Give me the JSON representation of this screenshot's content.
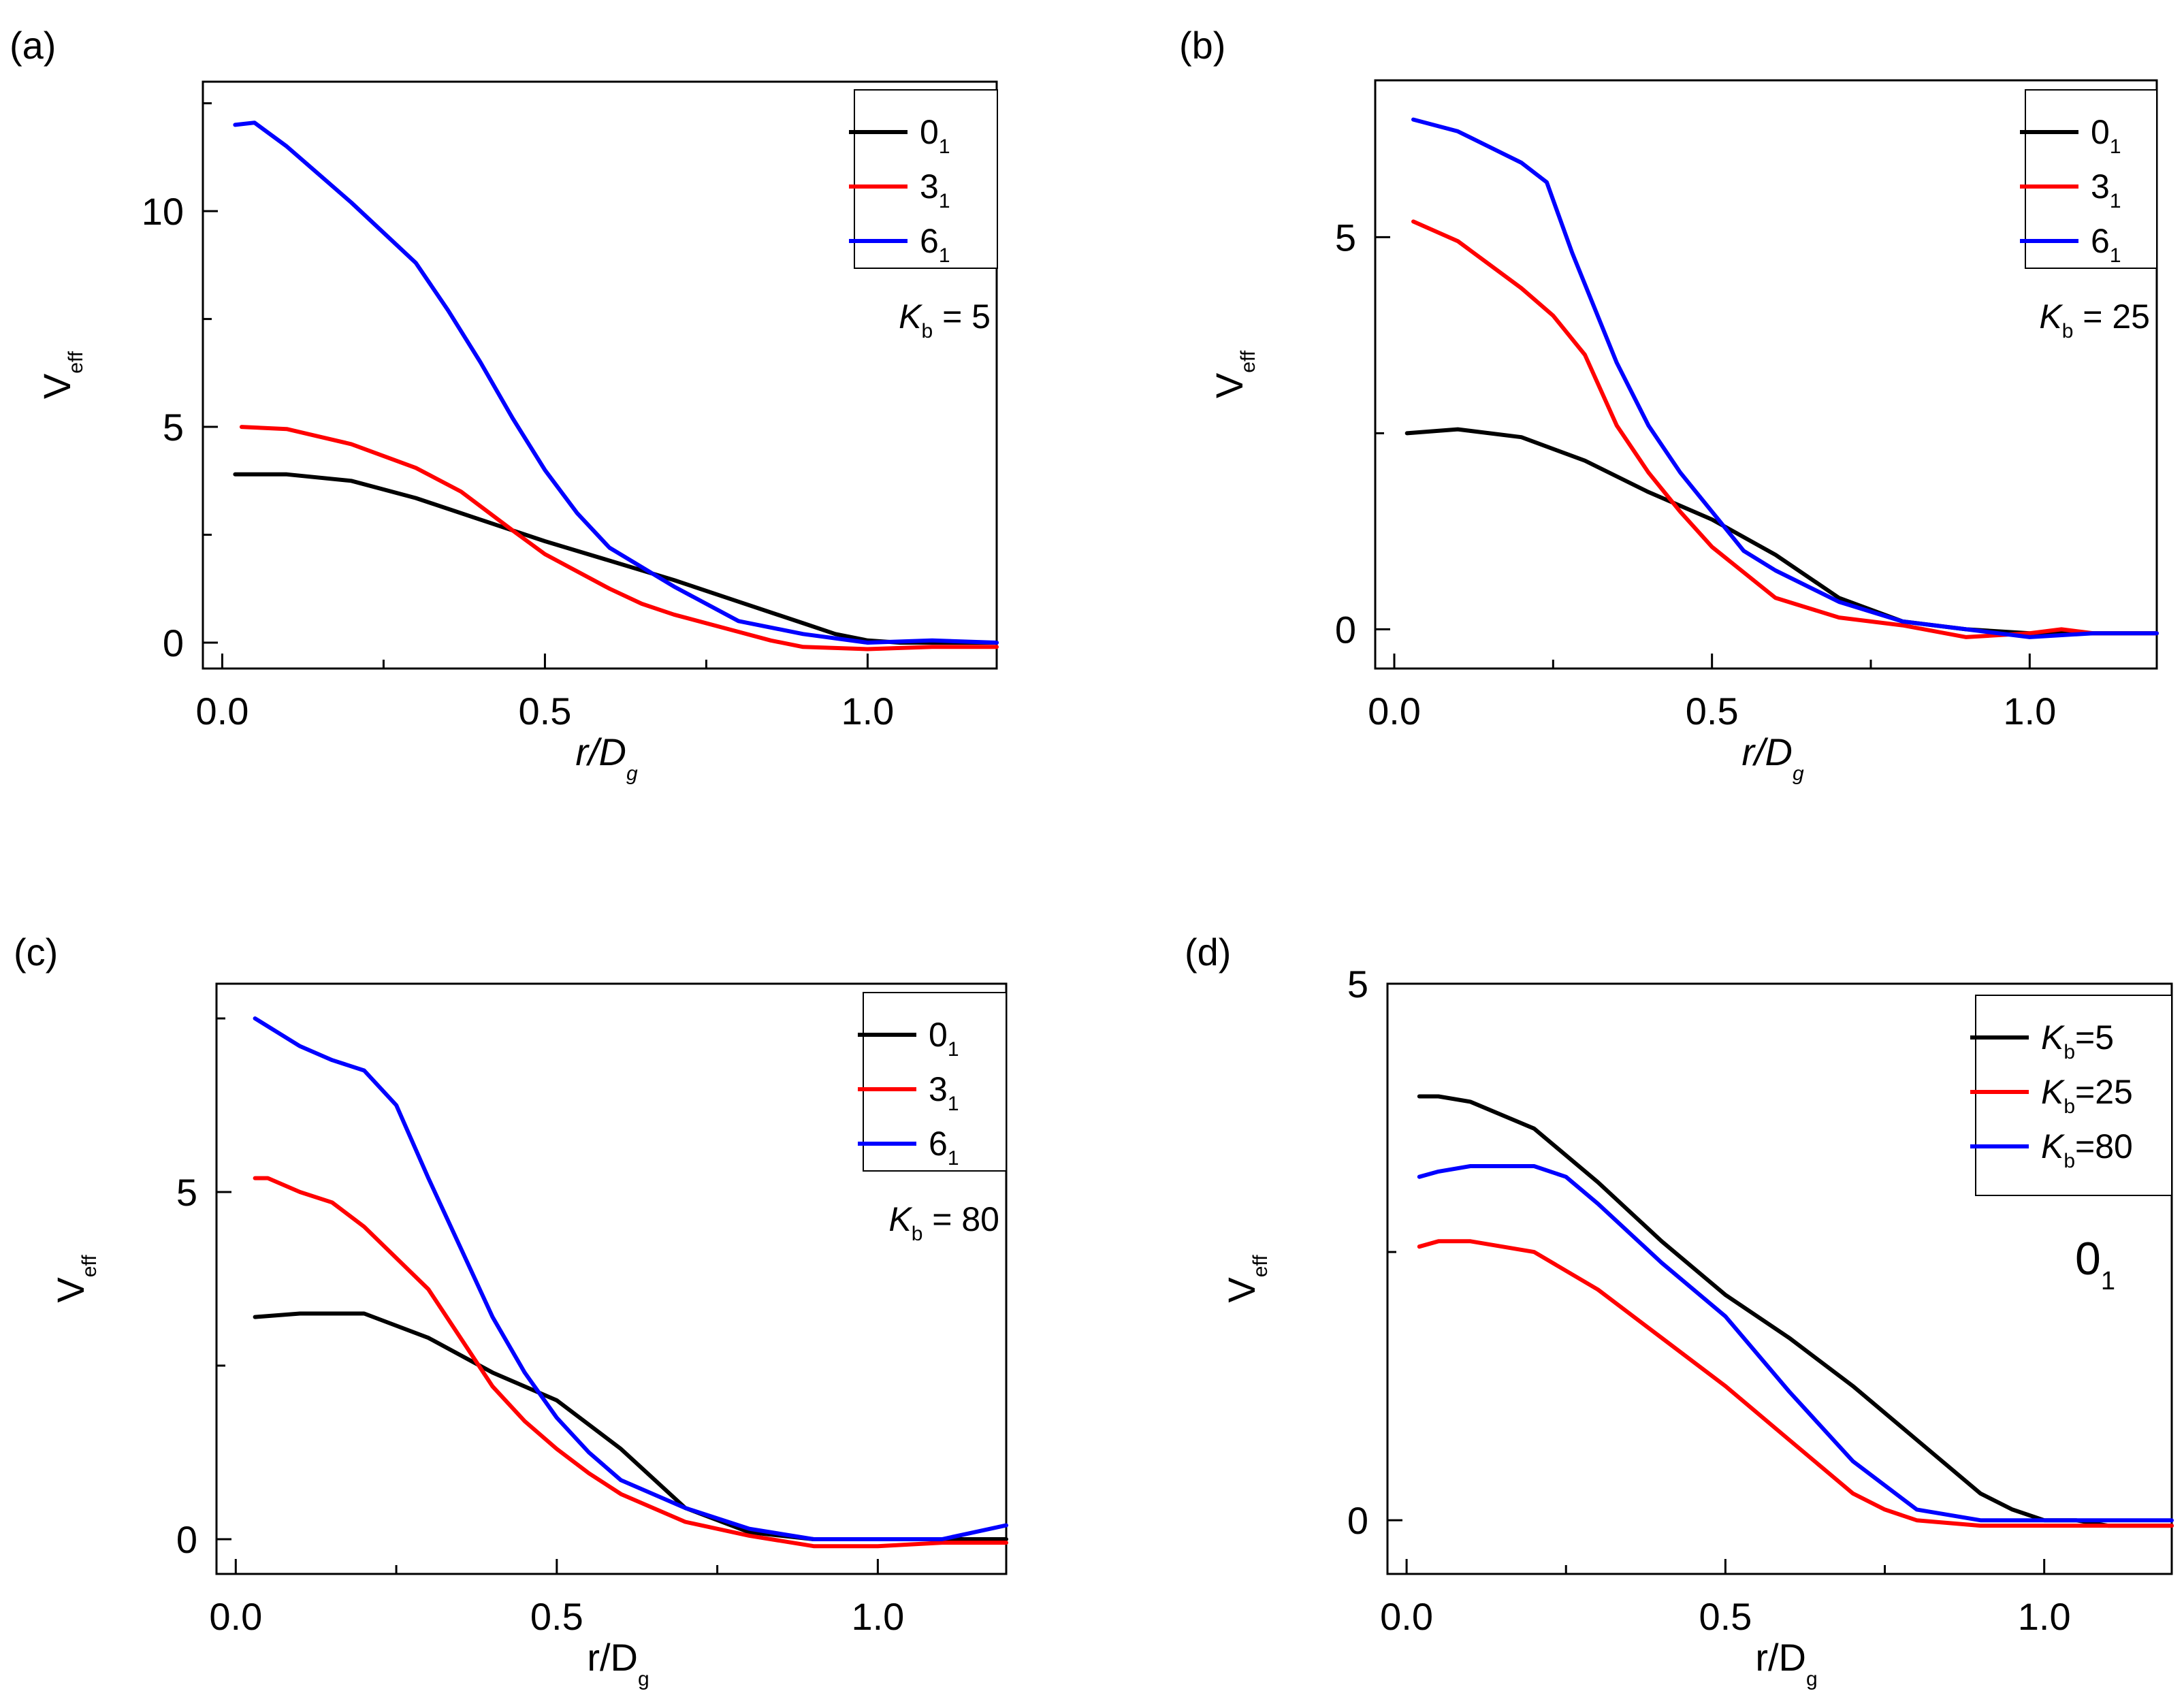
{
  "chart_data": [
    {
      "panel_label": "(a)",
      "type": "line",
      "xlabel": "r/D",
      "xlabel_sub": "g",
      "xlabel_italic": true,
      "ylabel": "V",
      "ylabel_sub": "eff",
      "xlim": [
        -0.03,
        1.2
      ],
      "ylim": [
        -0.6,
        13
      ],
      "xticks": [
        0.0,
        0.5,
        1.0
      ],
      "xtick_labels": [
        "0.0",
        "0.5",
        "1.0"
      ],
      "yticks": [
        0,
        5,
        10
      ],
      "ytick_labels": [
        "0",
        "5",
        "10"
      ],
      "annotation": {
        "symbol": "K",
        "sub": "b",
        "rest": " = 5",
        "italic": true
      },
      "legend_position": "top-right",
      "series": [
        {
          "name": "0",
          "name_sub": "1",
          "color": "#000000",
          "x": [
            0.02,
            0.1,
            0.2,
            0.3,
            0.4,
            0.5,
            0.6,
            0.7,
            0.8,
            0.9,
            0.95,
            1.0,
            1.05,
            1.1,
            1.2
          ],
          "y": [
            3.9,
            3.9,
            3.75,
            3.35,
            2.85,
            2.35,
            1.9,
            1.45,
            0.95,
            0.45,
            0.2,
            0.05,
            0.0,
            0.0,
            0.0
          ]
        },
        {
          "name": "3",
          "name_sub": "1",
          "color": "#ff0000",
          "x": [
            0.03,
            0.1,
            0.2,
            0.3,
            0.37,
            0.45,
            0.5,
            0.6,
            0.65,
            0.7,
            0.8,
            0.85,
            0.9,
            1.0,
            1.1,
            1.2
          ],
          "y": [
            5.0,
            4.95,
            4.6,
            4.05,
            3.5,
            2.6,
            2.05,
            1.25,
            0.9,
            0.65,
            0.25,
            0.05,
            -0.1,
            -0.15,
            -0.1,
            -0.1
          ]
        },
        {
          "name": "6",
          "name_sub": "1",
          "color": "#0000ff",
          "x": [
            0.02,
            0.05,
            0.1,
            0.2,
            0.3,
            0.35,
            0.4,
            0.45,
            0.5,
            0.55,
            0.6,
            0.7,
            0.8,
            0.9,
            1.0,
            1.1,
            1.2
          ],
          "y": [
            12.0,
            12.05,
            11.5,
            10.2,
            8.8,
            7.7,
            6.5,
            5.2,
            4.0,
            3.0,
            2.2,
            1.3,
            0.5,
            0.2,
            0.0,
            0.05,
            0.0
          ]
        }
      ]
    },
    {
      "panel_label": "(b)",
      "type": "line",
      "xlabel": "r/D",
      "xlabel_sub": "g",
      "xlabel_italic": true,
      "ylabel": "V",
      "ylabel_sub": "eff",
      "xlim": [
        -0.03,
        1.2
      ],
      "ylim": [
        -0.5,
        7
      ],
      "xticks": [
        0.0,
        0.5,
        1.0
      ],
      "xtick_labels": [
        "0.0",
        "0.5",
        "1.0"
      ],
      "yticks": [
        0,
        5
      ],
      "ytick_labels": [
        "0",
        "5"
      ],
      "annotation": {
        "symbol": "K",
        "sub": "b",
        "rest": " = 25",
        "italic": true
      },
      "legend_position": "top-right",
      "series": [
        {
          "name": "0",
          "name_sub": "1",
          "color": "#000000",
          "x": [
            0.02,
            0.1,
            0.2,
            0.3,
            0.4,
            0.5,
            0.6,
            0.7,
            0.8,
            0.9,
            1.0,
            1.1,
            1.2
          ],
          "y": [
            2.5,
            2.55,
            2.45,
            2.15,
            1.75,
            1.4,
            0.95,
            0.4,
            0.1,
            0.0,
            -0.05,
            -0.05,
            -0.05
          ]
        },
        {
          "name": "3",
          "name_sub": "1",
          "color": "#ff0000",
          "x": [
            0.03,
            0.1,
            0.2,
            0.25,
            0.3,
            0.35,
            0.4,
            0.45,
            0.5,
            0.6,
            0.7,
            0.8,
            0.9,
            1.0,
            1.05,
            1.1,
            1.2
          ],
          "y": [
            5.2,
            4.95,
            4.35,
            4.0,
            3.5,
            2.6,
            2.0,
            1.5,
            1.05,
            0.4,
            0.15,
            0.05,
            -0.1,
            -0.05,
            0.0,
            -0.05,
            -0.05
          ]
        },
        {
          "name": "6",
          "name_sub": "1",
          "color": "#0000ff",
          "x": [
            0.03,
            0.1,
            0.15,
            0.2,
            0.24,
            0.28,
            0.3,
            0.35,
            0.4,
            0.45,
            0.5,
            0.55,
            0.6,
            0.7,
            0.8,
            0.9,
            1.0,
            1.1,
            1.2
          ],
          "y": [
            6.5,
            6.35,
            6.15,
            5.95,
            5.7,
            4.8,
            4.4,
            3.4,
            2.6,
            2.0,
            1.5,
            1.0,
            0.75,
            0.35,
            0.1,
            0.0,
            -0.1,
            -0.05,
            -0.05
          ]
        }
      ]
    },
    {
      "panel_label": "(c)",
      "type": "line",
      "xlabel": "r/D",
      "xlabel_sub": "g",
      "xlabel_italic": false,
      "ylabel": "V",
      "ylabel_sub": "eff",
      "xlim": [
        -0.03,
        1.2
      ],
      "ylim": [
        -0.5,
        8
      ],
      "xticks": [
        0.0,
        0.5,
        1.0
      ],
      "xtick_labels": [
        "0.0",
        "0.5",
        "1.0"
      ],
      "yticks": [
        0,
        5
      ],
      "ytick_labels": [
        "0",
        "5"
      ],
      "annotation": {
        "symbol": "K",
        "sub": "b",
        "rest": " = 80",
        "italic": true
      },
      "legend_position": "top-right",
      "series": [
        {
          "name": "0",
          "name_sub": "1",
          "color": "#000000",
          "x": [
            0.03,
            0.1,
            0.2,
            0.3,
            0.4,
            0.5,
            0.6,
            0.7,
            0.8,
            0.9,
            1.0,
            1.1,
            1.2
          ],
          "y": [
            3.2,
            3.25,
            3.25,
            2.9,
            2.4,
            2.0,
            1.3,
            0.45,
            0.1,
            0.0,
            0.0,
            0.0,
            0.0
          ]
        },
        {
          "name": "3",
          "name_sub": "1",
          "color": "#ff0000",
          "x": [
            0.03,
            0.05,
            0.1,
            0.15,
            0.2,
            0.3,
            0.35,
            0.4,
            0.45,
            0.5,
            0.55,
            0.6,
            0.7,
            0.8,
            0.9,
            1.0,
            1.1,
            1.2
          ],
          "y": [
            5.2,
            5.2,
            5.0,
            4.85,
            4.5,
            3.6,
            2.9,
            2.2,
            1.7,
            1.3,
            0.95,
            0.65,
            0.25,
            0.05,
            -0.1,
            -0.1,
            -0.05,
            -0.05
          ]
        },
        {
          "name": "6",
          "name_sub": "1",
          "color": "#0000ff",
          "x": [
            0.03,
            0.1,
            0.15,
            0.2,
            0.25,
            0.3,
            0.35,
            0.4,
            0.45,
            0.5,
            0.55,
            0.6,
            0.7,
            0.8,
            0.9,
            1.0,
            1.1,
            1.15,
            1.2
          ],
          "y": [
            7.5,
            7.1,
            6.9,
            6.75,
            6.25,
            5.2,
            4.2,
            3.2,
            2.4,
            1.75,
            1.25,
            0.85,
            0.45,
            0.15,
            0.0,
            0.0,
            0.0,
            0.1,
            0.2
          ]
        }
      ]
    },
    {
      "panel_label": "(d)",
      "type": "line",
      "xlabel": "r/D",
      "xlabel_sub": "g",
      "xlabel_italic": false,
      "ylabel": "V",
      "ylabel_sub": "eff",
      "xlim": [
        -0.03,
        1.2
      ],
      "ylim": [
        -0.5,
        5
      ],
      "xticks": [
        0.0,
        0.5,
        1.0
      ],
      "xtick_labels": [
        "0.0",
        "0.5",
        "1.0"
      ],
      "yticks": [
        0,
        5
      ],
      "ytick_labels": [
        "0",
        "5"
      ],
      "annotation": {
        "symbol": "0",
        "sub": "1",
        "rest": "",
        "italic": false
      },
      "legend_position": "top-right",
      "series": [
        {
          "name": "K",
          "name_sub": "b",
          "name_rest": "=5",
          "color": "#000000",
          "x": [
            0.02,
            0.05,
            0.1,
            0.2,
            0.3,
            0.4,
            0.5,
            0.6,
            0.7,
            0.8,
            0.9,
            0.95,
            1.0,
            1.05,
            1.1,
            1.2
          ],
          "y": [
            3.95,
            3.95,
            3.9,
            3.65,
            3.15,
            2.6,
            2.1,
            1.7,
            1.25,
            0.75,
            0.25,
            0.1,
            0.0,
            0.0,
            -0.05,
            -0.05
          ]
        },
        {
          "name": "K",
          "name_sub": "b",
          "name_rest": "=25",
          "color": "#ff0000",
          "x": [
            0.02,
            0.05,
            0.1,
            0.15,
            0.2,
            0.3,
            0.4,
            0.5,
            0.6,
            0.7,
            0.75,
            0.8,
            0.9,
            1.0,
            1.1,
            1.2
          ],
          "y": [
            2.55,
            2.6,
            2.6,
            2.55,
            2.5,
            2.15,
            1.7,
            1.25,
            0.75,
            0.25,
            0.1,
            0.0,
            -0.05,
            -0.05,
            -0.05,
            -0.05
          ]
        },
        {
          "name": "K",
          "name_sub": "b",
          "name_rest": "=80",
          "color": "#0000ff",
          "x": [
            0.02,
            0.05,
            0.1,
            0.15,
            0.2,
            0.25,
            0.3,
            0.4,
            0.5,
            0.6,
            0.7,
            0.8,
            0.85,
            0.9,
            1.0,
            1.1,
            1.2
          ],
          "y": [
            3.2,
            3.25,
            3.3,
            3.3,
            3.3,
            3.2,
            2.95,
            2.4,
            1.9,
            1.2,
            0.55,
            0.1,
            0.05,
            0.0,
            0.0,
            0.0,
            0.0
          ]
        }
      ]
    }
  ]
}
